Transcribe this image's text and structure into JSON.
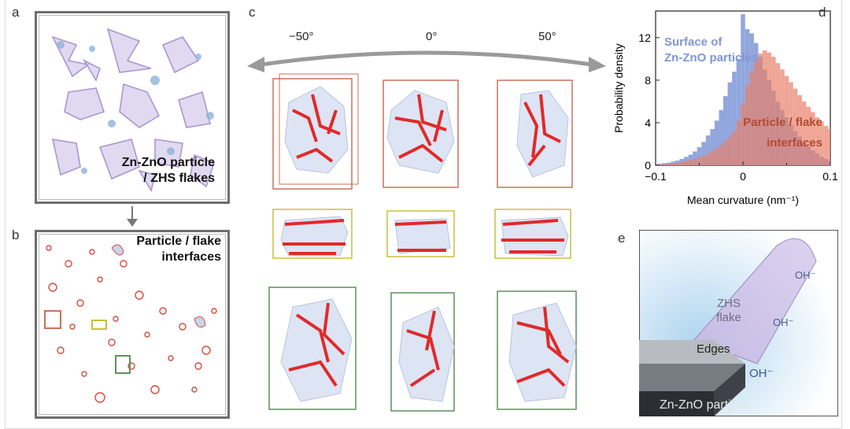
{
  "panels": {
    "a": {
      "letter": "a",
      "label_line1": "Zn-ZnO particle",
      "label_line2": "/ ZHS flakes"
    },
    "b": {
      "letter": "b",
      "label_line1": "Particle / flake",
      "label_line2": "interfaces"
    },
    "c": {
      "letter": "c",
      "angles": [
        "−50°",
        "0°",
        "50°"
      ]
    },
    "d": {
      "letter": "d"
    },
    "e": {
      "letter": "e",
      "zhs_line1": "ZHS",
      "zhs_line2": "flake",
      "edges": "Edges",
      "oh1": "OH⁻",
      "oh2": "OH⁻",
      "oh3": "OH⁻",
      "particle": "Zn-ZnO particle"
    }
  },
  "colors": {
    "surface": "#7f96d8",
    "interface": "#e8806a",
    "box_red": "#c9725a",
    "box_yellow": "#c9bf3a",
    "box_green": "#5f8f5a",
    "flake": "#b9a7d9"
  },
  "chart_data": {
    "type": "histogram",
    "xlabel": "Mean curvature (nm⁻¹)",
    "ylabel": "Probability density",
    "xlim": [
      -0.1,
      0.1
    ],
    "ylim": [
      0,
      14.5
    ],
    "xticks": [
      "−0.1",
      "0",
      "0.1"
    ],
    "xtick_minor": [
      "−0.05",
      "0.05"
    ],
    "yticks": [
      "0",
      "4",
      "8",
      "12"
    ],
    "ytick_values": [
      0,
      4,
      8,
      12
    ],
    "series": [
      {
        "name": "Surface of Zn-ZnO particles",
        "name_line1": "Surface of",
        "name_line2": "Zn-ZnO particles",
        "color": "#7f96d8",
        "x": [
          -0.1,
          -0.095,
          -0.09,
          -0.085,
          -0.08,
          -0.075,
          -0.07,
          -0.065,
          -0.06,
          -0.055,
          -0.05,
          -0.045,
          -0.04,
          -0.035,
          -0.03,
          -0.025,
          -0.02,
          -0.015,
          -0.01,
          -0.005,
          0,
          0.005,
          0.01,
          0.015,
          0.02,
          0.025,
          0.03,
          0.035,
          0.04,
          0.045,
          0.05,
          0.055,
          0.06,
          0.065,
          0.07,
          0.075,
          0.08,
          0.085,
          0.09,
          0.095,
          0.1
        ],
        "values": [
          0.1,
          0.15,
          0.2,
          0.25,
          0.35,
          0.45,
          0.6,
          0.8,
          1.0,
          1.3,
          1.7,
          2.2,
          2.8,
          3.4,
          4.2,
          5.2,
          6.5,
          7.8,
          8.8,
          10.0,
          14.2,
          12.8,
          12.4,
          11.5,
          10.2,
          9.0,
          8.0,
          7.0,
          6.0,
          5.2,
          4.5,
          3.8,
          3.2,
          2.7,
          2.2,
          1.8,
          1.4,
          1.1,
          0.8,
          0.6,
          0.45
        ]
      },
      {
        "name": "Particle / flake interfaces",
        "name_line1": "Particle / flake",
        "name_line2": "interfaces",
        "color": "#e8806a",
        "x": [
          -0.1,
          -0.095,
          -0.09,
          -0.085,
          -0.08,
          -0.075,
          -0.07,
          -0.065,
          -0.06,
          -0.055,
          -0.05,
          -0.045,
          -0.04,
          -0.035,
          -0.03,
          -0.025,
          -0.02,
          -0.015,
          -0.01,
          -0.005,
          0,
          0.005,
          0.01,
          0.015,
          0.02,
          0.025,
          0.03,
          0.035,
          0.04,
          0.045,
          0.05,
          0.055,
          0.06,
          0.065,
          0.07,
          0.075,
          0.08,
          0.085,
          0.09,
          0.095,
          0.1
        ],
        "values": [
          0.05,
          0.08,
          0.12,
          0.15,
          0.2,
          0.25,
          0.3,
          0.4,
          0.5,
          0.6,
          0.75,
          0.9,
          1.1,
          1.3,
          1.6,
          1.9,
          2.3,
          2.7,
          3.2,
          4.2,
          5.8,
          7.5,
          8.8,
          9.8,
          10.5,
          10.8,
          10.6,
          10.2,
          9.6,
          9.0,
          8.4,
          7.8,
          7.2,
          6.6,
          6.0,
          5.5,
          5.0,
          4.5,
          4.1,
          3.7,
          3.4
        ]
      }
    ]
  }
}
